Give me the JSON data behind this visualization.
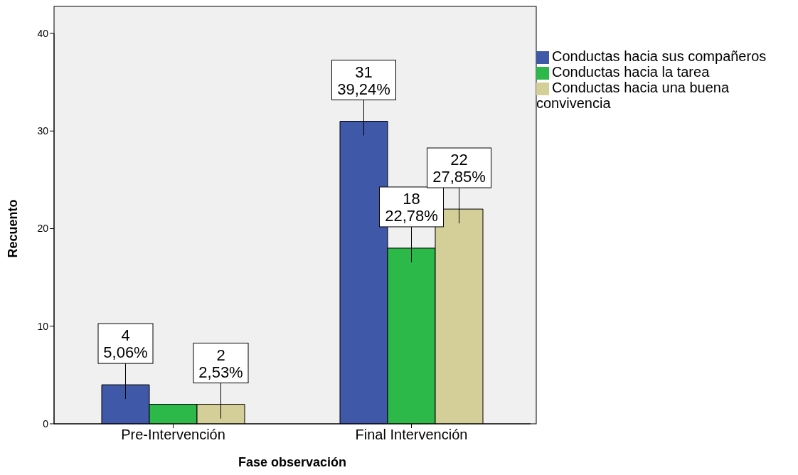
{
  "chart_data": {
    "type": "bar",
    "xlabel": "Fase observación",
    "ylabel": "Recuento",
    "categories": [
      "Pre-Intervención",
      "Final Intervención"
    ],
    "series": [
      {
        "name": "Conductas hacia sus compañeros",
        "color": "#3f58a8",
        "values": [
          4,
          31
        ],
        "value_labels": [
          "4\n5,06%",
          "31\n39,24%"
        ]
      },
      {
        "name": "Conductas hacia la tarea",
        "color": "#2db84a",
        "values": [
          2,
          18
        ],
        "value_labels": [
          null,
          "18\n22,78%"
        ]
      },
      {
        "name": "Conductas hacia una buena convivencia",
        "color": "#d4cf98",
        "values": [
          2,
          22
        ],
        "value_labels": [
          "2\n2,53%",
          "22\n27,85%"
        ]
      }
    ],
    "ylim": [
      0,
      40
    ],
    "yticks": [
      0,
      10,
      20,
      30,
      40
    ],
    "grid": false,
    "legend": "right"
  }
}
